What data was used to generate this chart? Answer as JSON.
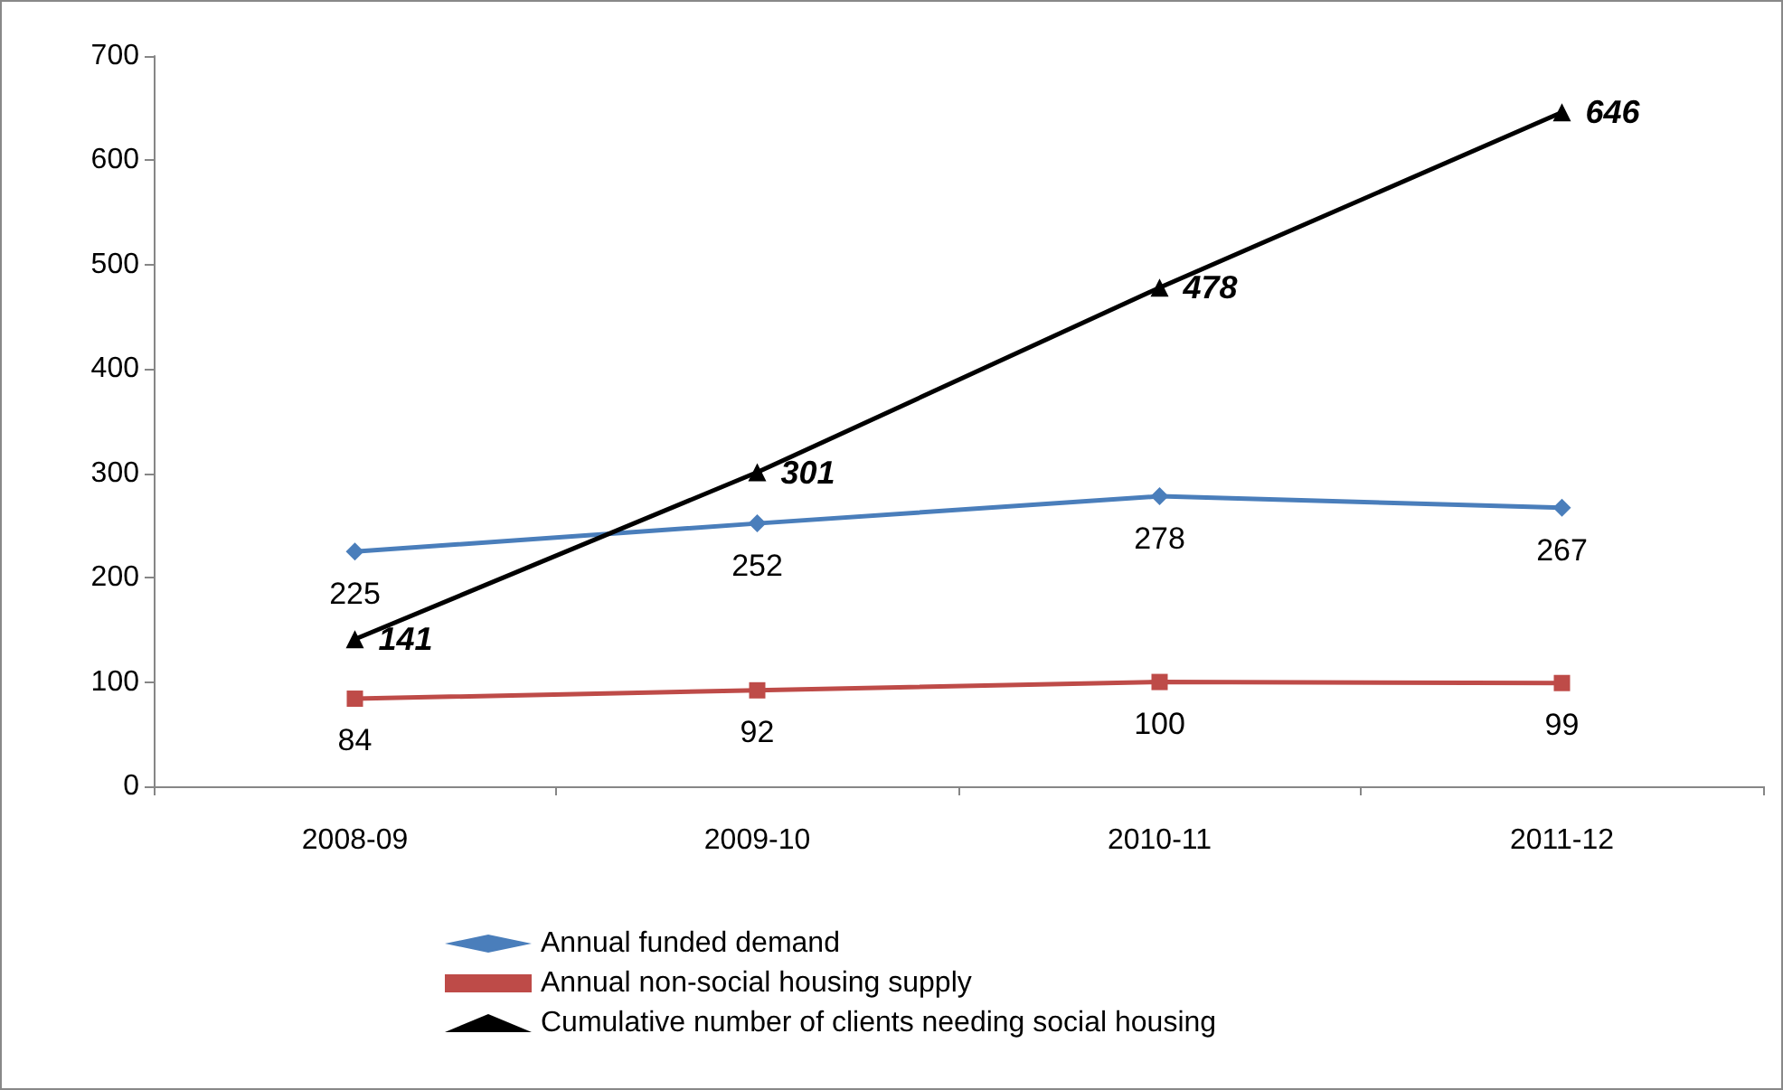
{
  "chart_data": {
    "type": "line",
    "categories": [
      "2008-09",
      "2009-10",
      "2010-11",
      "2011-12"
    ],
    "series": [
      {
        "name": "Annual funded demand",
        "color": "#4a7ebb",
        "marker": "diamond",
        "values": [
          225,
          252,
          278,
          267
        ]
      },
      {
        "name": "Annual non-social housing supply",
        "color": "#be4b48",
        "marker": "square",
        "values": [
          84,
          92,
          100,
          99
        ]
      },
      {
        "name": "Cumulative number of clients needing social housing",
        "color": "#000000",
        "marker": "triangle",
        "values": [
          141,
          301,
          478,
          646
        ]
      }
    ],
    "ylim": [
      0,
      700
    ],
    "yticks": [
      0,
      100,
      200,
      300,
      400,
      500,
      600,
      700
    ],
    "grid": false,
    "legend": "bottom",
    "data_labels": true
  }
}
